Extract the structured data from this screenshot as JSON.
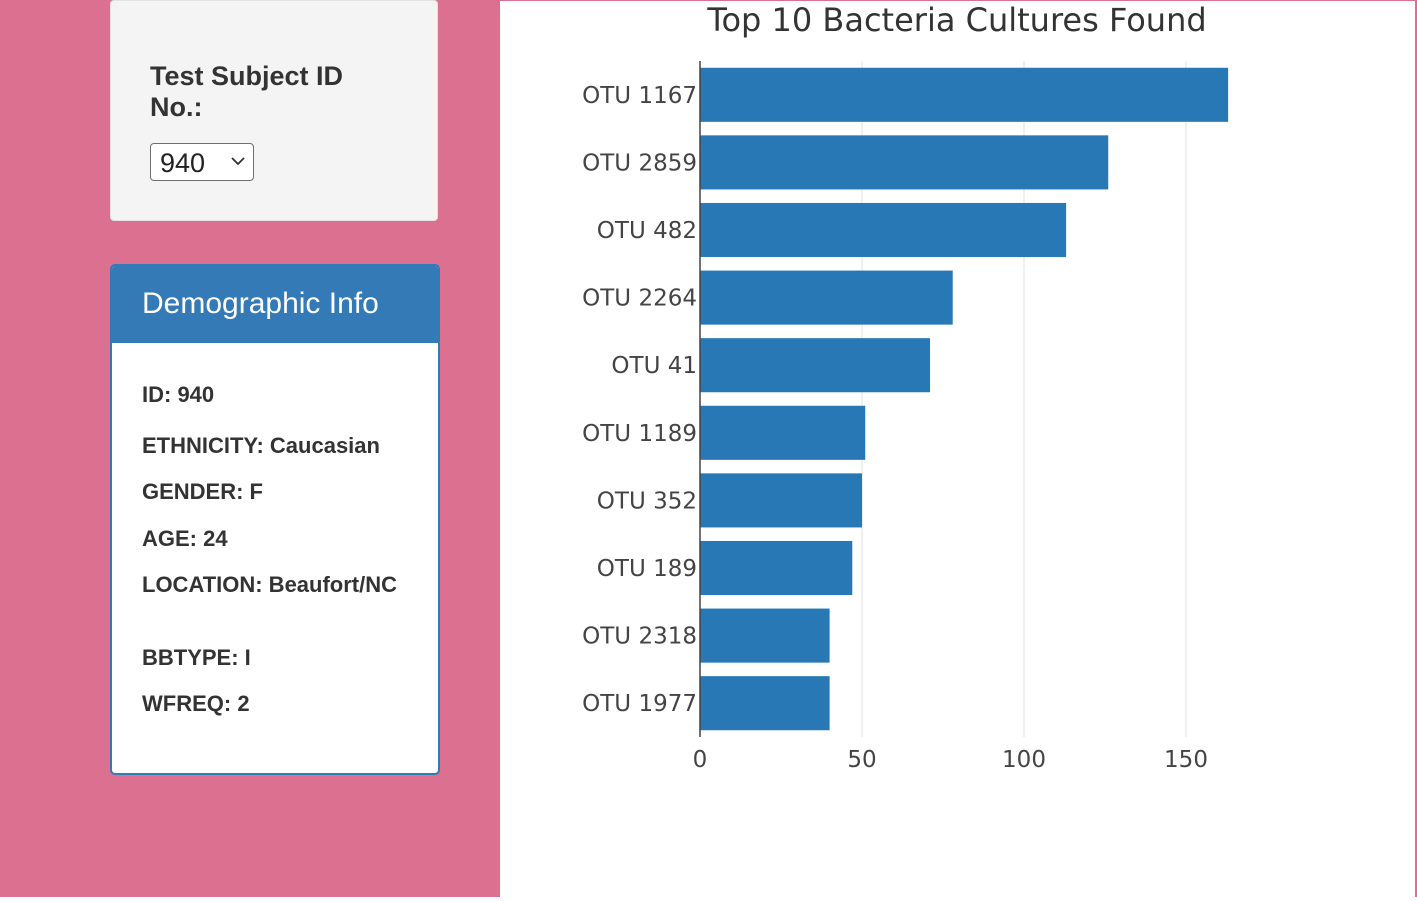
{
  "selector": {
    "label": "Test Subject ID No.:",
    "selected_value": "940"
  },
  "demographics": {
    "title": "Demographic Info",
    "rows": [
      "ID: 940",
      "ETHNICITY: Caucasian",
      "GENDER: F",
      "AGE: 24",
      "LOCATION: Beaufort/NC",
      "BBTYPE: I",
      "WFREQ: 2"
    ]
  },
  "colors": {
    "page_bg": "#dc7090",
    "panel_primary": "#337ab7",
    "bar": "#2878b5"
  },
  "icons": {
    "select_chevron": "chevron-down-icon"
  },
  "chart_data": {
    "type": "bar",
    "orientation": "horizontal",
    "title": "Top 10 Bacteria Cultures Found",
    "categories": [
      "OTU 1167",
      "OTU 2859",
      "OTU 482",
      "OTU 2264",
      "OTU 41",
      "OTU 1189",
      "OTU 352",
      "OTU 189",
      "OTU 2318",
      "OTU 1977"
    ],
    "values": [
      163,
      126,
      113,
      78,
      71,
      51,
      50,
      47,
      40,
      40
    ],
    "xlim": [
      0,
      185
    ],
    "xticks": [
      "0",
      "50",
      "100",
      "150"
    ],
    "xtick_values": [
      0,
      50,
      100,
      150
    ],
    "grid": "vertical",
    "legend": "none"
  }
}
